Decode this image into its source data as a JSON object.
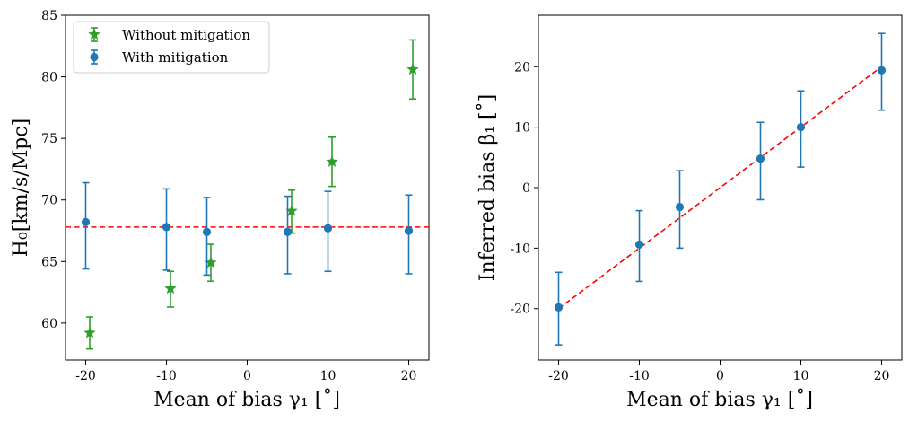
{
  "chart_data": [
    {
      "type": "scatter",
      "xlabel": "Mean of bias γ₁ [˚]",
      "ylabel": "H₀[km/s/Mpc]",
      "xlim": [
        -22.5,
        22.5
      ],
      "ylim": [
        57,
        85
      ],
      "xticks": [
        -20,
        -10,
        0,
        10,
        20
      ],
      "yticks": [
        60,
        65,
        70,
        75,
        80,
        85
      ],
      "series": [
        {
          "name": "Without mitigation",
          "marker": "star",
          "color": "#2ca02c",
          "points": [
            {
              "x": -19.5,
              "y": 59.2,
              "yerr_low": 1.3,
              "yerr_high": 1.3
            },
            {
              "x": -9.5,
              "y": 62.8,
              "yerr_low": 1.5,
              "yerr_high": 1.4
            },
            {
              "x": -4.5,
              "y": 64.9,
              "yerr_low": 1.5,
              "yerr_high": 1.5
            },
            {
              "x": 5.5,
              "y": 69.1,
              "yerr_low": 1.8,
              "yerr_high": 1.7
            },
            {
              "x": 10.5,
              "y": 73.1,
              "yerr_low": 2.0,
              "yerr_high": 2.0
            },
            {
              "x": 20.5,
              "y": 80.6,
              "yerr_low": 2.4,
              "yerr_high": 2.4
            }
          ]
        },
        {
          "name": "With mitigation",
          "marker": "circle",
          "color": "#1f77b4",
          "points": [
            {
              "x": -20,
              "y": 68.2,
              "yerr_low": 3.8,
              "yerr_high": 3.2
            },
            {
              "x": -10,
              "y": 67.8,
              "yerr_low": 3.5,
              "yerr_high": 3.1
            },
            {
              "x": -5,
              "y": 67.4,
              "yerr_low": 3.5,
              "yerr_high": 2.8
            },
            {
              "x": 5,
              "y": 67.4,
              "yerr_low": 3.4,
              "yerr_high": 2.9
            },
            {
              "x": 10,
              "y": 67.7,
              "yerr_low": 3.5,
              "yerr_high": 3.0
            },
            {
              "x": 20,
              "y": 67.5,
              "yerr_low": 3.5,
              "yerr_high": 2.9
            }
          ]
        }
      ],
      "reference_line": {
        "type": "horizontal",
        "y": 67.8,
        "color": "#ff0000",
        "style": "dashed"
      },
      "legend_position": "upper-left"
    },
    {
      "type": "scatter",
      "xlabel": "Mean of bias γ₁ [˚]",
      "ylabel": "Inferred bias β₁ [˚]",
      "xlim": [
        -22.5,
        22.5
      ],
      "ylim": [
        -28.5,
        28.5
      ],
      "xticks": [
        -20,
        -10,
        0,
        10,
        20
      ],
      "yticks": [
        -20,
        -10,
        0,
        10,
        20
      ],
      "series": [
        {
          "name": "Inferred bias",
          "marker": "circle",
          "color": "#1f77b4",
          "points": [
            {
              "x": -20,
              "y": -19.8,
              "yerr_low": 6.2,
              "yerr_high": 5.8
            },
            {
              "x": -10,
              "y": -9.4,
              "yerr_low": 6.1,
              "yerr_high": 5.6
            },
            {
              "x": -5,
              "y": -3.2,
              "yerr_low": 6.8,
              "yerr_high": 6.0
            },
            {
              "x": 5,
              "y": 4.8,
              "yerr_low": 6.8,
              "yerr_high": 6.0
            },
            {
              "x": 10,
              "y": 10.0,
              "yerr_low": 6.6,
              "yerr_high": 6.0
            },
            {
              "x": 20,
              "y": 19.4,
              "yerr_low": 6.6,
              "yerr_high": 6.1
            }
          ]
        }
      ],
      "reference_line": {
        "type": "identity",
        "from": -20,
        "to": 20,
        "color": "#ff0000",
        "style": "dashed"
      }
    }
  ]
}
